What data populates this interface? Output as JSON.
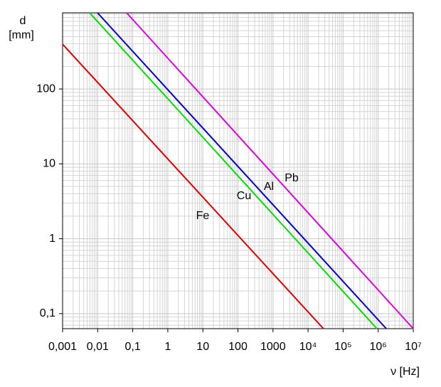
{
  "chart_data": {
    "type": "line",
    "log_x": true,
    "log_y": true,
    "grid": true,
    "y_label_top": "d",
    "y_label_unit": "[mm]",
    "x_label": "ν [Hz]",
    "xlim": [
      0.001,
      10000000
    ],
    "ylim": [
      0.063,
      1040
    ],
    "xticks": [
      {
        "value": 0.001,
        "label": "0,001"
      },
      {
        "value": 0.01,
        "label": "0,01"
      },
      {
        "value": 0.1,
        "label": "0,1"
      },
      1,
      10,
      100,
      1000,
      {
        "value": 10000,
        "label": "10⁴"
      },
      {
        "value": 100000,
        "label": "10⁵"
      },
      {
        "value": 1000000,
        "label": "10⁶"
      },
      {
        "value": 10000000,
        "label": "10⁷"
      }
    ],
    "yticks": [
      {
        "value": 0.1,
        "label": "0,1"
      },
      1,
      10,
      100
    ],
    "series": [
      {
        "name": "Fe",
        "color": "#e00000",
        "x": [
          0.001,
          27500
        ],
        "values": [
          396,
          0.063
        ]
      },
      {
        "name": "Cu",
        "color": "#00e000",
        "x": [
          0.0059,
          920000
        ],
        "values": [
          1040,
          0.063
        ]
      },
      {
        "name": "Al",
        "color": "#0000d0",
        "x": [
          0.0099,
          1700000
        ],
        "values": [
          1040,
          0.063
        ]
      },
      {
        "name": "Pb",
        "color": "#e000e0",
        "x": [
          0.067,
          10000000
        ],
        "values": [
          1040,
          0.063
        ]
      }
    ]
  }
}
